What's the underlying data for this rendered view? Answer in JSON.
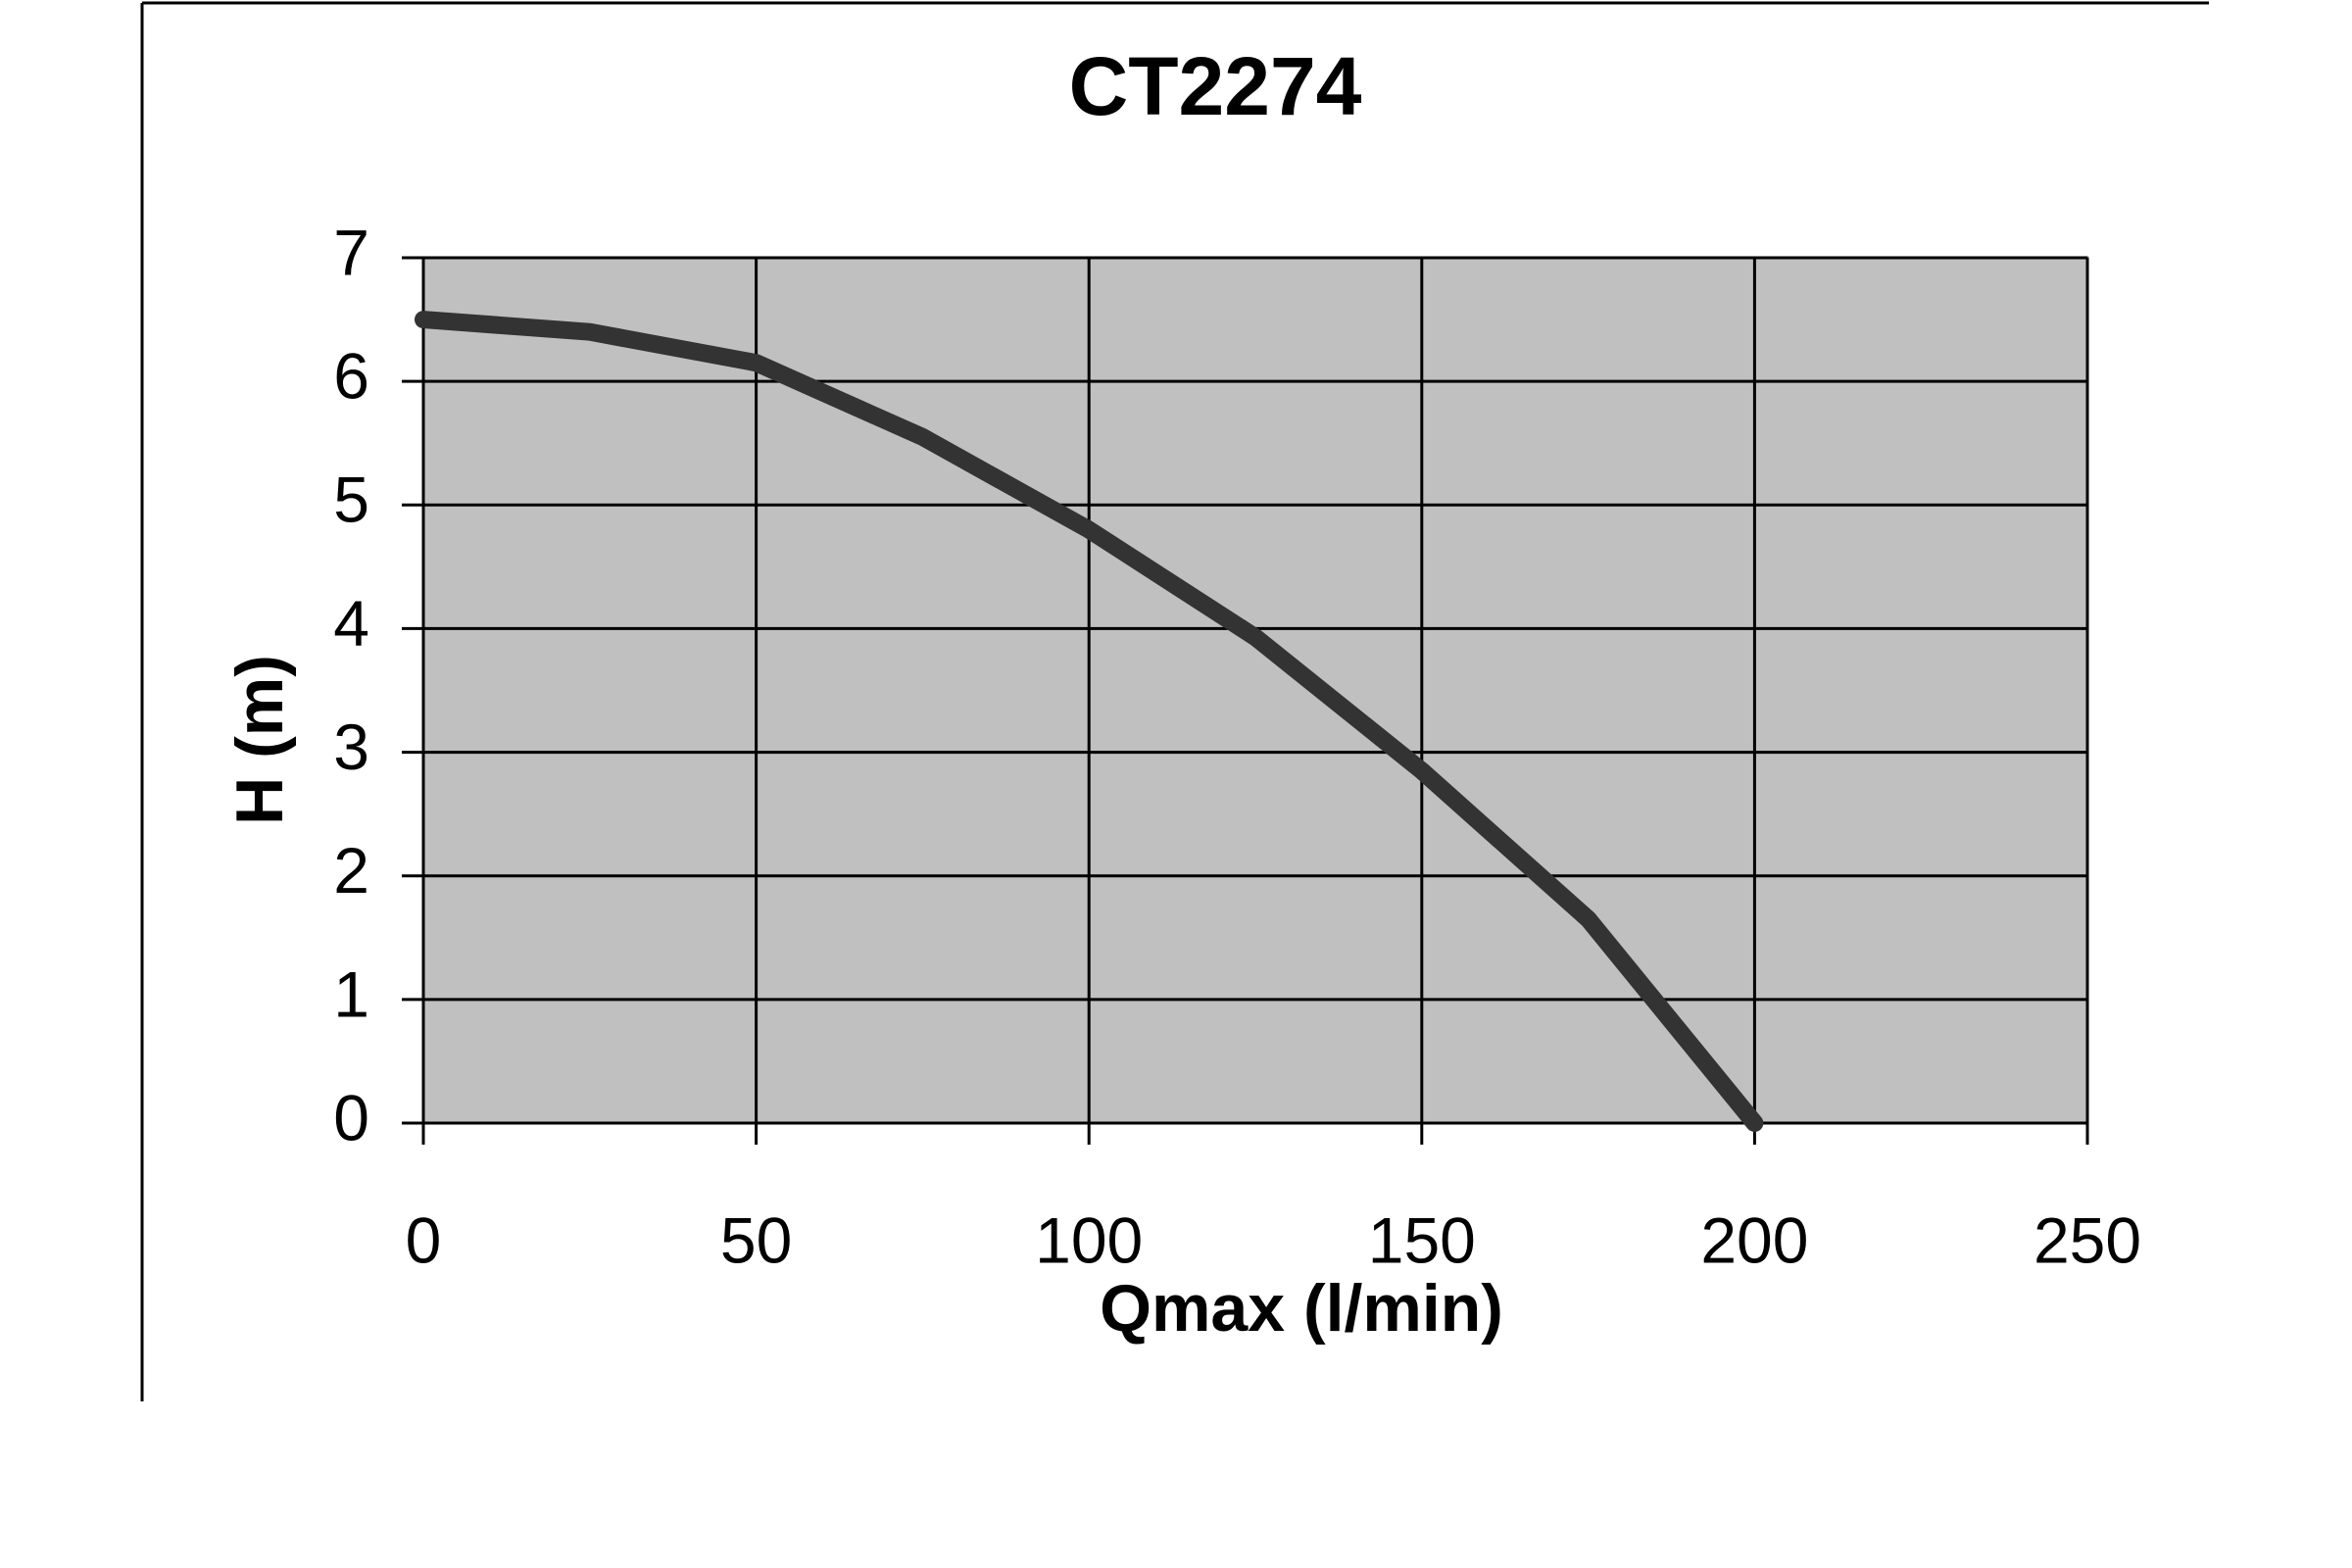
{
  "chart_data": {
    "type": "line",
    "title": "CT2274",
    "x_label": "Qmax (l/min)",
    "y_label": "H (m)",
    "x": [
      0,
      25,
      50,
      75,
      100,
      125,
      150,
      175,
      200
    ],
    "series": [
      {
        "name": "CT2274",
        "color": "#333333",
        "values": [
          6.5,
          6.4,
          6.15,
          5.55,
          4.8,
          3.93,
          2.85,
          1.65,
          0
        ]
      }
    ],
    "xlim": [
      0,
      250
    ],
    "xticks": [
      0,
      50,
      100,
      150,
      200,
      250
    ],
    "ylim": [
      0,
      7
    ],
    "yticks": [
      0,
      1,
      2,
      3,
      4,
      5,
      6,
      7
    ],
    "grid": true,
    "plot_background": "#c0c0c0"
  }
}
